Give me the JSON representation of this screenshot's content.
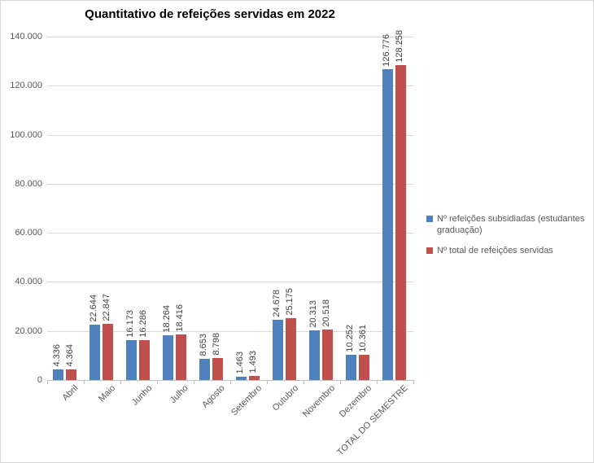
{
  "title": "Quantitativo de refeições servidas em 2022",
  "colors": {
    "series1": "#4F81BD",
    "series2": "#C0504D",
    "gridline": "#D9D9D9",
    "axis": "#BFBFBF",
    "tick_label": "#595959",
    "data_label": "#404040",
    "title": "#000000"
  },
  "legend": {
    "items": [
      {
        "label": "Nº refeições subsidiadas (estudantes graduação)",
        "color": "#4F81BD"
      },
      {
        "label": "Nº total de refeições servidas",
        "color": "#C0504D"
      }
    ]
  },
  "chart_data": {
    "type": "bar",
    "title": "Quantitativo de refeições servidas em 2022",
    "categories": [
      "Abril",
      "Maio",
      "Junho",
      "Julho",
      "Agosto",
      "Setembro",
      "Outubro",
      "Novembro",
      "Dezembro",
      "TOTAL DO SEMESTRE"
    ],
    "series": [
      {
        "name": "Nº refeições subsidiadas (estudantes graduação)",
        "color": "#4F81BD",
        "values": [
          4336,
          22644,
          16173,
          18264,
          8653,
          1463,
          24678,
          20313,
          10252,
          126776
        ],
        "value_labels": [
          "4.336",
          "22.644",
          "16.173",
          "18.264",
          "8.653",
          "1.463",
          "24.678",
          "20.313",
          "10.252",
          "126.776"
        ]
      },
      {
        "name": "Nº total de refeições servidas",
        "color": "#C0504D",
        "values": [
          4364,
          22847,
          16286,
          18416,
          8798,
          1493,
          25175,
          20518,
          10361,
          128258
        ],
        "value_labels": [
          "4.364",
          "22.847",
          "16.286",
          "18.416",
          "8.798",
          "1.493",
          "25.175",
          "20.518",
          "10.361",
          "128.258"
        ]
      }
    ],
    "xlabel": "",
    "ylabel": "",
    "ylim": [
      0,
      140000
    ],
    "ytick_step": 20000,
    "ytick_labels": [
      "0",
      "20.000",
      "40.000",
      "60.000",
      "80.000",
      "100.000",
      "120.000",
      "140.000"
    ],
    "grid": true,
    "legend_position": "right",
    "data_labels_rotation": "vertical",
    "category_labels_rotation": 45
  }
}
